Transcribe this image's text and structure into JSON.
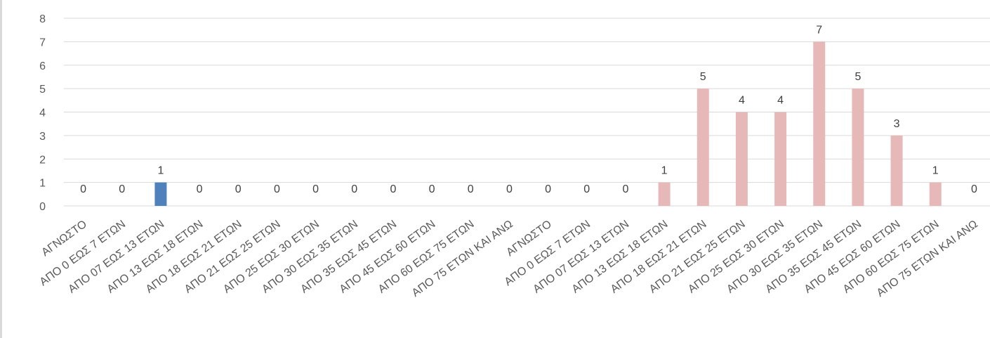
{
  "chart_data": {
    "type": "bar",
    "title": "",
    "xlabel": "",
    "ylabel": "",
    "ylim": [
      0,
      8
    ],
    "yticks": [
      "0",
      "1",
      "2",
      "3",
      "4",
      "5",
      "6",
      "7",
      "8"
    ],
    "grid": true,
    "legend": "none",
    "categories": [
      "ΑΓΝΩΣΤΟ",
      "ΑΠΟ 0 ΕΩΣ 7 ΕΤΩΝ",
      "ΑΠΟ 07 ΕΩΣ 13 ΕΤΩΝ",
      "ΑΠΟ 13 ΕΩΣ 18 ΕΤΩΝ",
      "ΑΠΟ 18 ΕΩΣ 21 ΕΤΩΝ",
      "ΑΠΟ 21 ΕΩΣ 25 ΕΤΩΝ",
      "ΑΠΟ 25 ΕΩΣ 30 ΕΤΩΝ",
      "ΑΠΟ 30 ΕΩΣ 35 ΕΤΩΝ",
      "ΑΠΟ 35 ΕΩΣ 45 ΕΤΩΝ",
      "ΑΠΟ 45 ΕΩΣ 60 ΕΤΩΝ",
      "ΑΠΟ 60 ΕΩΣ 75 ΕΤΩΝ",
      "ΑΠΟ 75 ΕΤΩΝ ΚΑΙ ΑΝΩ",
      "ΑΓΝΩΣΤΟ",
      "ΑΠΟ 0 ΕΩΣ 7 ΕΤΩΝ",
      "ΑΠΟ 07 ΕΩΣ 13 ΕΤΩΝ",
      "ΑΠΟ 13 ΕΩΣ 18 ΕΤΩΝ",
      "ΑΠΟ 18 ΕΩΣ 21 ΕΤΩΝ",
      "ΑΠΟ 21 ΕΩΣ 25 ΕΤΩΝ",
      "ΑΠΟ 25 ΕΩΣ 30 ΕΤΩΝ",
      "ΑΠΟ 30 ΕΩΣ 35 ΕΤΩΝ",
      "ΑΠΟ 35 ΕΩΣ 45 ΕΤΩΝ",
      "ΑΠΟ 45 ΕΩΣ 60 ΕΤΩΝ",
      "ΑΠΟ 60 ΕΩΣ 75 ΕΤΩΝ",
      "ΑΠΟ 75 ΕΤΩΝ ΚΑΙ ΑΝΩ"
    ],
    "values": [
      0,
      0,
      1,
      0,
      0,
      0,
      0,
      0,
      0,
      0,
      0,
      0,
      0,
      0,
      0,
      1,
      5,
      4,
      4,
      7,
      5,
      3,
      1,
      0
    ],
    "bar_colors": [
      "#4f81bd",
      "#4f81bd",
      "#4f81bd",
      "#4f81bd",
      "#4f81bd",
      "#4f81bd",
      "#4f81bd",
      "#4f81bd",
      "#4f81bd",
      "#4f81bd",
      "#4f81bd",
      "#4f81bd",
      "#e6b9b8",
      "#e6b9b8",
      "#e6b9b8",
      "#e6b9b8",
      "#e6b9b8",
      "#e6b9b8",
      "#e6b9b8",
      "#e6b9b8",
      "#e6b9b8",
      "#e6b9b8",
      "#e6b9b8",
      "#e6b9b8"
    ],
    "data_labels": true
  }
}
